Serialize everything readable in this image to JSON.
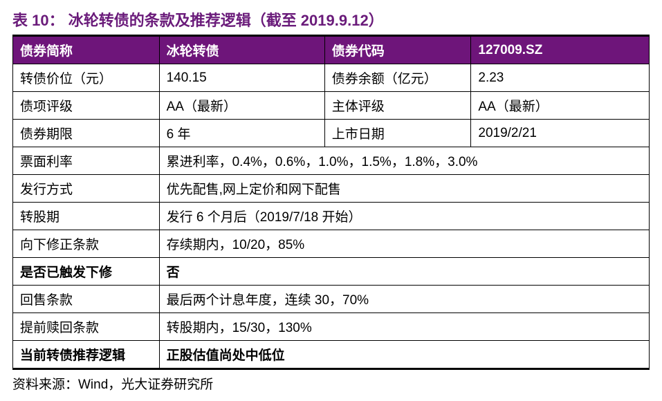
{
  "title": "表 10： 冰轮转债的条款及推荐逻辑（截至 2019.9.12）",
  "colors": {
    "title_color": "#6a1b7a",
    "header_bg": "#6e157a",
    "header_text": "#ffffff",
    "border": "#000000",
    "text": "#000000",
    "background": "#ffffff"
  },
  "header": {
    "c1": "债券简称",
    "c2": "冰轮转债",
    "c3": "债券代码",
    "c4": "127009.SZ"
  },
  "rows4": [
    {
      "c1": "转债价位（元）",
      "c2": "140.15",
      "c3": "债券余额（亿元）",
      "c4": "2.23",
      "bold": false
    },
    {
      "c1": "债项评级",
      "c2": "AA（最新）",
      "c3": "主体评级",
      "c4": "AA（最新）",
      "bold": false
    },
    {
      "c1": "债券期限",
      "c2": "6 年",
      "c3": "上市日期",
      "c4": "2019/2/21",
      "bold": false
    }
  ],
  "rows2": [
    {
      "label": "票面利率",
      "value": "累进利率，0.4%，0.6%，1.0%，1.5%，1.8%，3.0%",
      "bold": false
    },
    {
      "label": "发行方式",
      "value": "优先配售,网上定价和网下配售",
      "bold": false
    },
    {
      "label": "转股期",
      "value": "发行 6 个月后（2019/7/18 开始）",
      "bold": false
    },
    {
      "label": "向下修正条款",
      "value": "存续期内，10/20，85%",
      "bold": false
    },
    {
      "label": "是否已触发下修",
      "value": "否",
      "bold": true
    },
    {
      "label": "回售条款",
      "value": "最后两个计息年度，连续 30，70%",
      "bold": false
    },
    {
      "label": "提前赎回条款",
      "value": "转股期内，15/30，130%",
      "bold": false
    },
    {
      "label": "当前转债推荐逻辑",
      "value": "正股估值尚处中低位",
      "bold": true
    }
  ],
  "source": "资料来源：Wind，光大证券研究所",
  "font_sizes": {
    "title": 22,
    "cell": 19,
    "source": 19
  }
}
